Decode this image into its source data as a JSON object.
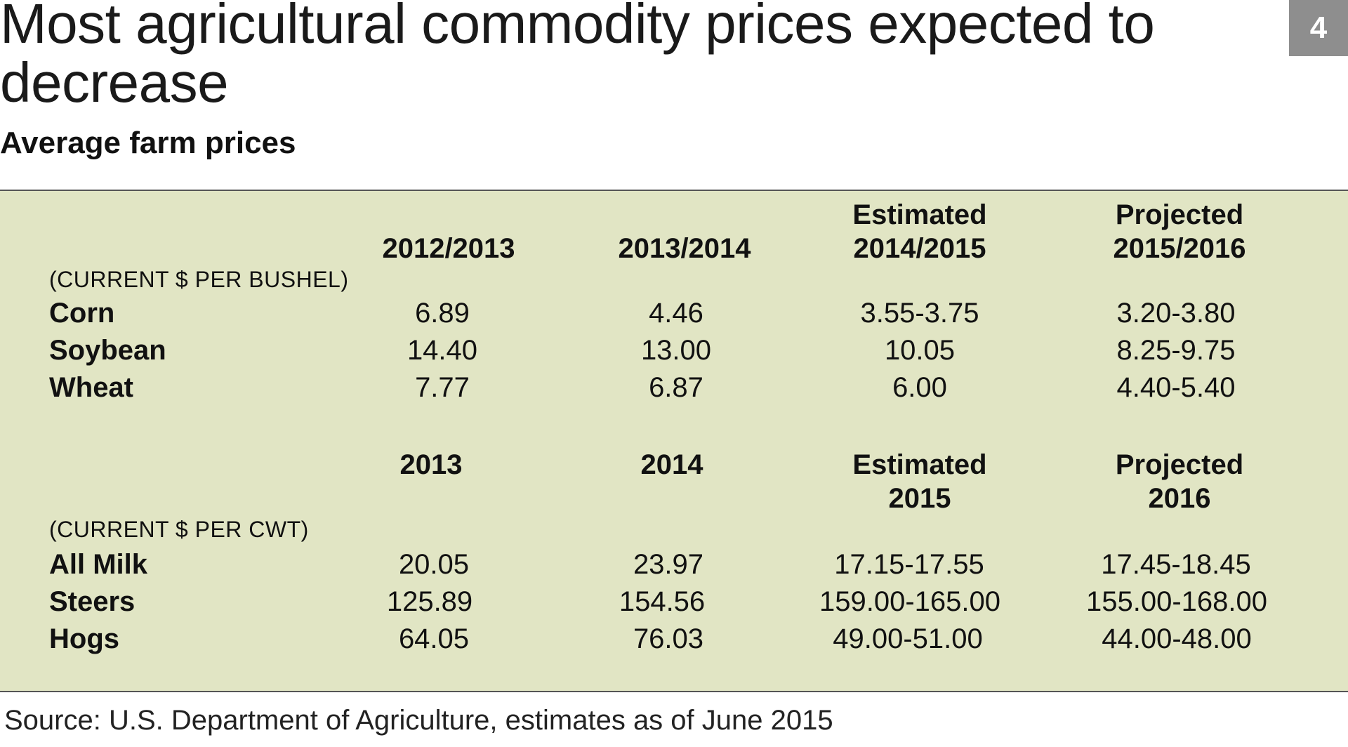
{
  "title": "Most agricultural commodity prices expected to decrease",
  "badge": "4",
  "subtitle": "Average farm prices",
  "source": "Source: U.S. Department of Agriculture, estimates as of June 2015",
  "colors": {
    "panel_background": "#e1e5c4",
    "badge_background": "#8e8e8e",
    "rule": "#555555"
  },
  "chart_data": {
    "type": "table",
    "title": "Most agricultural commodity prices expected to decrease",
    "subtitle": "Average farm prices",
    "sections": [
      {
        "headers": [
          {
            "line1": "",
            "line2": "2012/2013"
          },
          {
            "line1": "",
            "line2": "2013/2014"
          },
          {
            "line1": "Estimated",
            "line2": "2014/2015"
          },
          {
            "line1": "Projected",
            "line2": "2015/2016"
          }
        ],
        "unit": "(CURRENT $ PER BUSHEL)",
        "rows": [
          {
            "label": "Corn",
            "values": [
              "6.89",
              "4.46",
              "3.55-3.75",
              "3.20-3.80"
            ]
          },
          {
            "label": "Soybean",
            "values": [
              "14.40",
              "13.00",
              "10.05",
              "8.25-9.75"
            ]
          },
          {
            "label": "Wheat",
            "values": [
              "7.77",
              "6.87",
              "6.00",
              "4.40-5.40"
            ]
          }
        ]
      },
      {
        "headers": [
          {
            "line1": "",
            "line2": "2013"
          },
          {
            "line1": "",
            "line2": "2014"
          },
          {
            "line1": "Estimated",
            "line2": "2015"
          },
          {
            "line1": "Projected",
            "line2": "2016"
          }
        ],
        "unit": "(CURRENT $ PER CWT)",
        "rows": [
          {
            "label": "All Milk",
            "values": [
              "20.05",
              "23.97",
              "17.15-17.55",
              "17.45-18.45"
            ]
          },
          {
            "label": "Steers",
            "values": [
              "125.89",
              "154.56",
              "159.00-165.00",
              "155.00-168.00"
            ]
          },
          {
            "label": "Hogs",
            "values": [
              "64.05",
              "76.03",
              "49.00-51.00",
              "44.00-48.00"
            ]
          }
        ]
      }
    ]
  }
}
